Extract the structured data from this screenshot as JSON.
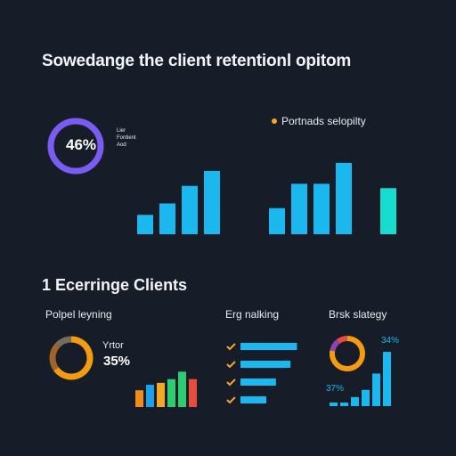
{
  "page": {
    "title": "Sowedange the client retentionl opitom",
    "section2_title": "1 Ecerringe Clients",
    "background": "#161c28"
  },
  "chart_data": [
    {
      "type": "pie",
      "center_label": "46%",
      "value": 46,
      "color": "#7b5cf2",
      "side_note": [
        "Lier",
        "Fontient",
        "Aod"
      ]
    },
    {
      "type": "bar",
      "values": [
        22,
        35,
        55,
        72
      ],
      "ylim": [
        0,
        80
      ],
      "color": "#1ab8ee"
    },
    {
      "type": "bar",
      "legend": "Portnads selopilty",
      "legend_color": "#f5a623",
      "values": [
        30,
        58,
        58,
        82,
        null,
        53
      ],
      "ylim": [
        0,
        85
      ],
      "colors": [
        "#1ab8ee",
        "#1ab8ee",
        "#1ab8ee",
        "#1ab8ee",
        null,
        "#16ddd0"
      ]
    },
    {
      "type": "pie",
      "title": "Polpel leyning",
      "side_label": "Yrtor",
      "center_label": "35%",
      "slices": [
        {
          "value": 65,
          "color": "#f39c12"
        },
        {
          "value": 22,
          "color": "#a0642a"
        },
        {
          "value": 13,
          "color": "#7a6a5a"
        }
      ]
    },
    {
      "type": "bar",
      "values": [
        18,
        24,
        26,
        30,
        38,
        30
      ],
      "ylim": [
        0,
        45
      ],
      "colors": [
        "#f08c1a",
        "#1e9fe8",
        "#f5a623",
        "#2ecc71",
        "#2ecc71",
        "#e74c3c"
      ]
    },
    {
      "type": "bar",
      "title": "Erg nalking",
      "orientation": "horizontal",
      "values": [
        70,
        62,
        44,
        32
      ],
      "xlim": [
        0,
        75
      ],
      "color": "#1ab8ee",
      "marker_color": "#f5a623"
    },
    {
      "type": "pie",
      "title": "Brsk slategy",
      "center_label": "34%",
      "slices": [
        {
          "value": 78,
          "color": "#f39c12"
        },
        {
          "value": 12,
          "color": "#8e44ad"
        },
        {
          "value": 10,
          "color": "#e74c3c"
        }
      ]
    },
    {
      "type": "bar",
      "annotation": "37%",
      "values": [
        4,
        4,
        10,
        18,
        36,
        60
      ],
      "ylim": [
        0,
        65
      ],
      "color": "#1ab8ee"
    }
  ]
}
